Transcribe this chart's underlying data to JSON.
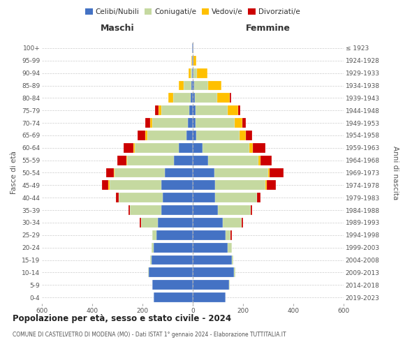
{
  "age_groups": [
    "0-4",
    "5-9",
    "10-14",
    "15-19",
    "20-24",
    "25-29",
    "30-34",
    "35-39",
    "40-44",
    "45-49",
    "50-54",
    "55-59",
    "60-64",
    "65-69",
    "70-74",
    "75-79",
    "80-84",
    "85-89",
    "90-94",
    "95-99",
    "100+"
  ],
  "birth_years": [
    "2019-2023",
    "2014-2018",
    "2009-2013",
    "2004-2008",
    "1999-2003",
    "1994-1998",
    "1989-1993",
    "1984-1988",
    "1979-1983",
    "1974-1978",
    "1969-1973",
    "1964-1968",
    "1959-1963",
    "1954-1958",
    "1949-1953",
    "1944-1948",
    "1939-1943",
    "1934-1938",
    "1929-1933",
    "1924-1928",
    "≤ 1923"
  ],
  "colors": {
    "celibi": "#4472c4",
    "coniugati": "#c5d9a0",
    "vedovi": "#ffc000",
    "divorziati": "#cc0000"
  },
  "maschi": {
    "celibi": [
      155,
      160,
      175,
      165,
      155,
      145,
      140,
      125,
      120,
      125,
      110,
      75,
      55,
      25,
      20,
      15,
      8,
      5,
      2,
      2,
      2
    ],
    "coniugati": [
      0,
      2,
      2,
      5,
      10,
      15,
      65,
      125,
      175,
      205,
      200,
      185,
      175,
      155,
      140,
      110,
      70,
      30,
      5,
      0,
      0
    ],
    "vedovi": [
      0,
      0,
      0,
      0,
      0,
      0,
      0,
      0,
      0,
      5,
      5,
      5,
      5,
      10,
      10,
      10,
      20,
      20,
      10,
      3,
      0
    ],
    "divorziati": [
      0,
      0,
      0,
      0,
      0,
      0,
      5,
      5,
      10,
      25,
      30,
      35,
      40,
      30,
      20,
      15,
      0,
      0,
      0,
      0,
      0
    ]
  },
  "femmine": {
    "celibi": [
      130,
      145,
      165,
      155,
      140,
      130,
      120,
      100,
      90,
      90,
      85,
      60,
      40,
      15,
      12,
      10,
      8,
      5,
      3,
      2,
      2
    ],
    "coniugati": [
      0,
      2,
      5,
      5,
      15,
      20,
      75,
      130,
      165,
      200,
      215,
      200,
      185,
      170,
      155,
      130,
      90,
      55,
      15,
      2,
      0
    ],
    "vedovi": [
      0,
      0,
      0,
      0,
      0,
      0,
      0,
      0,
      0,
      5,
      5,
      10,
      15,
      25,
      30,
      40,
      50,
      55,
      40,
      10,
      2
    ],
    "divorziati": [
      0,
      0,
      0,
      0,
      0,
      5,
      5,
      5,
      15,
      35,
      55,
      45,
      50,
      25,
      15,
      10,
      5,
      0,
      0,
      0,
      0
    ]
  },
  "title": "Popolazione per età, sesso e stato civile - 2024",
  "subtitle": "COMUNE DI CASTELVETRO DI MODENA (MO) - Dati ISTAT 1° gennaio 2024 - Elaborazione TUTTITALIA.IT",
  "xlabel_left": "Maschi",
  "xlabel_right": "Femmine",
  "ylabel_left": "Fasce di età",
  "ylabel_right": "Anni di nascita",
  "xlim": 600,
  "legend_labels": [
    "Celibi/Nubili",
    "Coniugati/e",
    "Vedovi/e",
    "Divorziati/e"
  ],
  "background_color": "#ffffff",
  "grid_color": "#cccccc"
}
